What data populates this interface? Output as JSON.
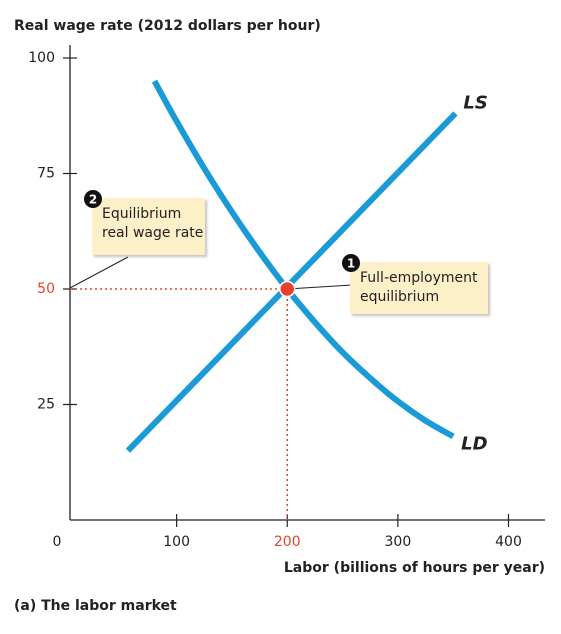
{
  "chart_data": {
    "type": "line",
    "title": "Real wage rate (2012 dollars per hour)",
    "x_label": "Labor (billions of hours per year)",
    "caption": "(a) The labor market",
    "xlim": [
      0,
      433
    ],
    "ylim": [
      0,
      100
    ],
    "xticks": [
      0,
      100,
      200,
      300,
      400
    ],
    "yticks": [
      25,
      50,
      75,
      100
    ],
    "line_color": "#1a9ad6",
    "highlight_color": "#e8412c",
    "equilibrium": {
      "x": 200,
      "y": 50
    },
    "series": [
      {
        "name": "LS",
        "color": "#1a9ad6",
        "x": [
          56,
          352
        ],
        "values": [
          15,
          88
        ]
      },
      {
        "name": "LD",
        "color": "#1a9ad6",
        "x": [
          80,
          100,
          125,
          150,
          175,
          200,
          225,
          250,
          275,
          300,
          325,
          350
        ],
        "values": [
          95,
          86.3,
          76.1,
          66.7,
          58,
          50,
          42.8,
          36.3,
          30.7,
          25.7,
          21.5,
          18.1
        ]
      }
    ],
    "annotations": [
      {
        "number": "1",
        "lines": [
          "Full-employment",
          "equilibrium"
        ]
      },
      {
        "number": "2",
        "lines": [
          "Equilibrium",
          "real wage rate"
        ]
      }
    ]
  }
}
